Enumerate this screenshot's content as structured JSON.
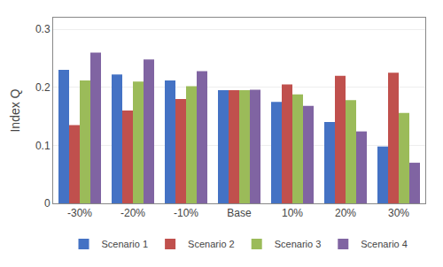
{
  "chart_data": {
    "type": "bar",
    "categories": [
      "-30%",
      "-20%",
      "-10%",
      "Base",
      "10%",
      "20%",
      "30%"
    ],
    "series": [
      {
        "name": "Scenario 1",
        "color": "#4472C4",
        "values": [
          0.23,
          0.222,
          0.212,
          0.195,
          0.175,
          0.14,
          0.098
        ]
      },
      {
        "name": "Scenario 2",
        "color": "#C0504D",
        "values": [
          0.135,
          0.16,
          0.18,
          0.195,
          0.205,
          0.22,
          0.225
        ]
      },
      {
        "name": "Scenario 3",
        "color": "#9BBB59",
        "values": [
          0.212,
          0.21,
          0.202,
          0.195,
          0.188,
          0.178,
          0.156
        ]
      },
      {
        "name": "Scenario 4",
        "color": "#8064A2",
        "values": [
          0.26,
          0.248,
          0.228,
          0.196,
          0.168,
          0.124,
          0.07
        ]
      }
    ],
    "ylabel": "Index Q",
    "ylim": [
      0,
      0.32
    ],
    "yticks": [
      0,
      0.1,
      0.2,
      0.3
    ],
    "grid": true,
    "legend": "bottom"
  }
}
